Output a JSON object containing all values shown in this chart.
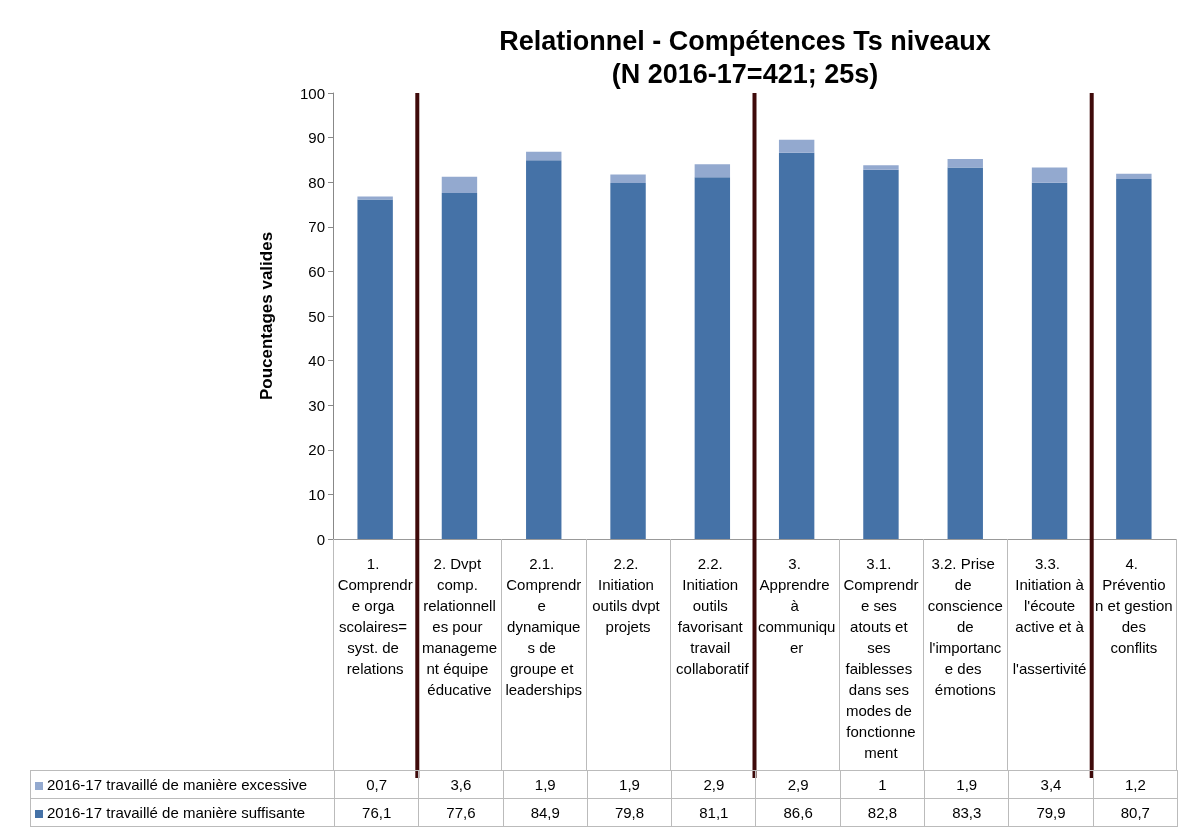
{
  "chart_data": {
    "type": "bar",
    "stacked": true,
    "title": "Relationnel - Compétences Ts niveaux",
    "subtitle": "(N 2016-17=421; 25s)",
    "ylabel": "Poucentages valides",
    "categories": [
      "1. Comprendre orga scolaires= syst. de relations",
      "2. Dvpt comp. relationnelles pour management équipe éducative",
      "2.1. Comprendre dynamiques de groupe et leaderships",
      "2.2. Initiation outils dvpt projets",
      "2.2. Initiation outils favorisant travail collaboratif",
      "3. Apprendre à communiquer",
      "3.1. Comprendre ses atouts et ses faiblesses dans ses modes de fonctionnement",
      "3.2. Prise de conscience de l'importance des émotions",
      "3.3. Initiation à l'écoute active et à l'assertivité",
      "4. Prévention et gestion des conflits"
    ],
    "series": [
      {
        "name": "2016-17 travaillé de manière suffisante",
        "color": "#4572a7",
        "values": [
          76.1,
          77.6,
          84.9,
          79.8,
          81.1,
          86.6,
          82.8,
          83.3,
          79.9,
          80.7
        ],
        "value_labels": [
          "76,1",
          "77,6",
          "84,9",
          "79,8",
          "81,1",
          "86,6",
          "82,8",
          "83,3",
          "79,9",
          "80,7"
        ]
      },
      {
        "name": "2016-17 travaillé de manière excessive",
        "color": "#93a9cf",
        "values": [
          0.7,
          3.6,
          1.9,
          1.9,
          2.9,
          2.9,
          1,
          1.9,
          3.4,
          1.2
        ],
        "value_labels": [
          "0,7",
          "3,6",
          "1,9",
          "1,9",
          "2,9",
          "2,9",
          "1",
          "1,9",
          "3,4",
          "1,2"
        ]
      }
    ],
    "ylim": [
      0,
      100
    ],
    "yticks": [
      0,
      10,
      20,
      30,
      40,
      50,
      60,
      70,
      80,
      90,
      100
    ],
    "grid": false,
    "legend": "bottom left"
  }
}
